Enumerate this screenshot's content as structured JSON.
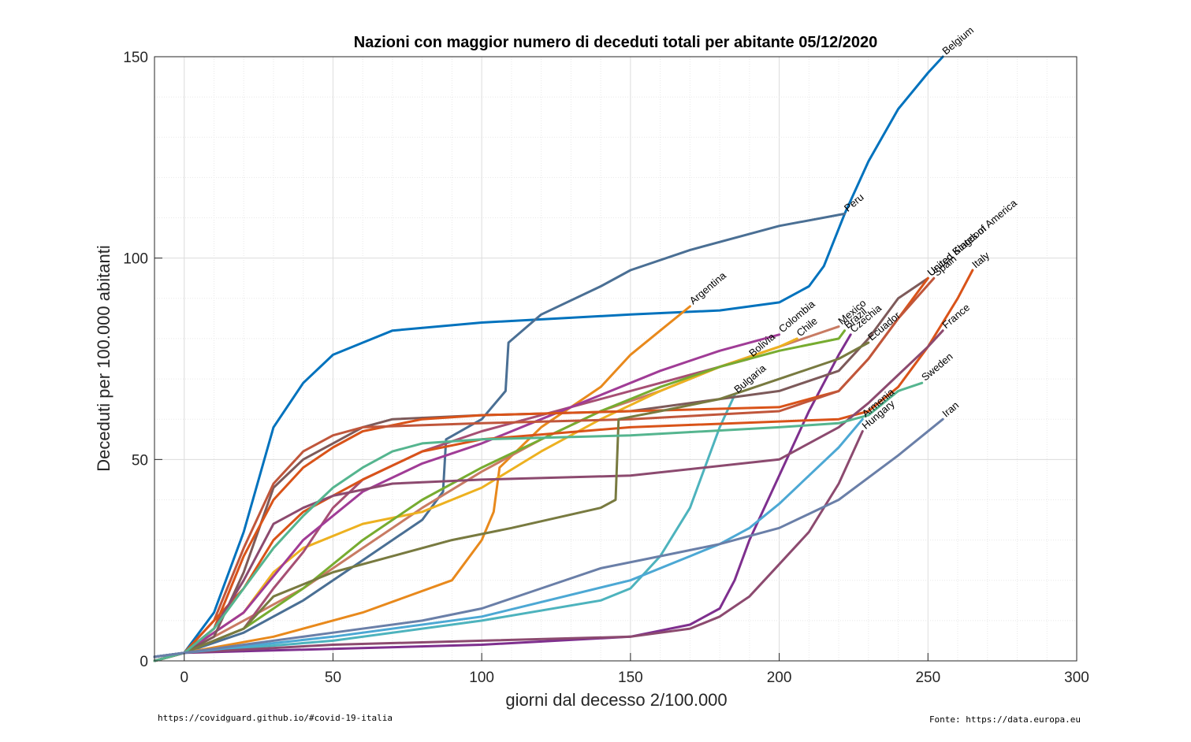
{
  "chart_data": {
    "type": "line",
    "title": "Nazioni con maggior numero di deceduti totali per abitante 05/12/2020",
    "xlabel": "giorni dal decesso 2/100.000",
    "ylabel": "Deceduti per 100.000 abitanti",
    "xlim": [
      -10,
      300
    ],
    "ylim": [
      0,
      150
    ],
    "xticks": [
      0,
      50,
      100,
      150,
      200,
      250,
      300
    ],
    "yticks": [
      0,
      50,
      100,
      150
    ],
    "grid": true,
    "series": [
      {
        "name": "Belgium",
        "color": "#0072bd",
        "points": [
          [
            -10,
            1
          ],
          [
            0,
            2
          ],
          [
            10,
            12
          ],
          [
            20,
            32
          ],
          [
            30,
            58
          ],
          [
            40,
            69
          ],
          [
            50,
            76
          ],
          [
            60,
            79
          ],
          [
            70,
            82
          ],
          [
            100,
            84
          ],
          [
            150,
            86
          ],
          [
            180,
            87
          ],
          [
            200,
            89
          ],
          [
            210,
            93
          ],
          [
            215,
            98
          ],
          [
            222,
            111
          ],
          [
            230,
            124
          ],
          [
            240,
            137
          ],
          [
            250,
            146
          ],
          [
            255,
            150
          ]
        ]
      },
      {
        "name": "Peru",
        "color": "#4a6f94",
        "points": [
          [
            -10,
            1
          ],
          [
            0,
            2
          ],
          [
            20,
            7
          ],
          [
            40,
            15
          ],
          [
            60,
            25
          ],
          [
            80,
            35
          ],
          [
            87,
            42
          ],
          [
            88,
            55
          ],
          [
            100,
            60
          ],
          [
            108,
            67
          ],
          [
            109,
            79
          ],
          [
            120,
            86
          ],
          [
            140,
            93
          ],
          [
            150,
            97
          ],
          [
            170,
            102
          ],
          [
            200,
            108
          ],
          [
            222,
            111
          ]
        ]
      },
      {
        "name": "Argentina",
        "color": "#e8891c",
        "points": [
          [
            -10,
            0
          ],
          [
            0,
            2
          ],
          [
            30,
            6
          ],
          [
            60,
            12
          ],
          [
            90,
            20
          ],
          [
            100,
            30
          ],
          [
            104,
            37
          ],
          [
            106,
            48
          ],
          [
            120,
            58
          ],
          [
            140,
            68
          ],
          [
            150,
            76
          ],
          [
            160,
            82
          ],
          [
            170,
            88
          ]
        ]
      },
      {
        "name": "Mexico",
        "color": "#c87b63",
        "points": [
          [
            -10,
            0
          ],
          [
            0,
            2
          ],
          [
            20,
            10
          ],
          [
            40,
            18
          ],
          [
            60,
            28
          ],
          [
            80,
            38
          ],
          [
            100,
            47
          ],
          [
            120,
            55
          ],
          [
            140,
            62
          ],
          [
            160,
            67
          ],
          [
            180,
            73
          ],
          [
            200,
            78
          ],
          [
            220,
            83
          ]
        ]
      },
      {
        "name": "Chile",
        "color": "#edb120",
        "points": [
          [
            -10,
            0
          ],
          [
            0,
            2
          ],
          [
            20,
            12
          ],
          [
            30,
            22
          ],
          [
            40,
            28
          ],
          [
            60,
            34
          ],
          [
            80,
            37
          ],
          [
            100,
            43
          ],
          [
            120,
            52
          ],
          [
            140,
            60
          ],
          [
            160,
            67
          ],
          [
            180,
            73
          ],
          [
            200,
            78
          ],
          [
            206,
            80
          ]
        ]
      },
      {
        "name": "Bolivia",
        "color": "#a64f73",
        "points": [
          [
            -10,
            0
          ],
          [
            0,
            2
          ],
          [
            20,
            8
          ],
          [
            30,
            18
          ],
          [
            40,
            27
          ],
          [
            50,
            38
          ],
          [
            60,
            45
          ],
          [
            80,
            52
          ],
          [
            100,
            57
          ],
          [
            120,
            61
          ],
          [
            140,
            65
          ],
          [
            160,
            69
          ],
          [
            180,
            73
          ],
          [
            190,
            75
          ]
        ]
      },
      {
        "name": "Colombia",
        "color": "#a03c96",
        "points": [
          [
            -10,
            0
          ],
          [
            0,
            2
          ],
          [
            20,
            12
          ],
          [
            40,
            30
          ],
          [
            60,
            42
          ],
          [
            80,
            49
          ],
          [
            100,
            54
          ],
          [
            120,
            60
          ],
          [
            140,
            66
          ],
          [
            160,
            72
          ],
          [
            180,
            77
          ],
          [
            200,
            81
          ]
        ]
      },
      {
        "name": "Bulgaria",
        "color": "#4db3bd",
        "points": [
          [
            -10,
            1
          ],
          [
            0,
            2
          ],
          [
            50,
            5
          ],
          [
            100,
            10
          ],
          [
            140,
            15
          ],
          [
            150,
            18
          ],
          [
            160,
            26
          ],
          [
            170,
            38
          ],
          [
            175,
            48
          ],
          [
            180,
            58
          ],
          [
            185,
            66
          ]
        ]
      },
      {
        "name": "Brazil",
        "color": "#77ac30",
        "points": [
          [
            -10,
            0
          ],
          [
            0,
            2
          ],
          [
            20,
            8
          ],
          [
            40,
            18
          ],
          [
            60,
            30
          ],
          [
            80,
            40
          ],
          [
            100,
            48
          ],
          [
            120,
            55
          ],
          [
            140,
            62
          ],
          [
            160,
            68
          ],
          [
            180,
            73
          ],
          [
            200,
            77
          ],
          [
            220,
            80
          ],
          [
            222,
            82
          ]
        ]
      },
      {
        "name": "Czechia",
        "color": "#7e2f8e",
        "points": [
          [
            -10,
            1
          ],
          [
            0,
            2
          ],
          [
            50,
            3
          ],
          [
            100,
            4
          ],
          [
            150,
            6
          ],
          [
            170,
            9
          ],
          [
            180,
            13
          ],
          [
            185,
            20
          ],
          [
            190,
            30
          ],
          [
            200,
            46
          ],
          [
            210,
            62
          ],
          [
            220,
            76
          ],
          [
            224,
            81
          ]
        ]
      },
      {
        "name": "United States of America",
        "color": "#7d5a5a",
        "points": [
          [
            -10,
            0
          ],
          [
            0,
            2
          ],
          [
            10,
            6
          ],
          [
            20,
            22
          ],
          [
            30,
            43
          ],
          [
            40,
            50
          ],
          [
            50,
            54
          ],
          [
            60,
            58
          ],
          [
            70,
            60
          ],
          [
            100,
            61
          ],
          [
            150,
            62
          ],
          [
            200,
            67
          ],
          [
            220,
            72
          ],
          [
            230,
            80
          ],
          [
            240,
            90
          ],
          [
            250,
            95
          ]
        ]
      },
      {
        "name": "United Kingdom",
        "color": "#d95319",
        "points": [
          [
            -10,
            0
          ],
          [
            0,
            2
          ],
          [
            10,
            8
          ],
          [
            20,
            26
          ],
          [
            30,
            40
          ],
          [
            40,
            48
          ],
          [
            50,
            53
          ],
          [
            60,
            57
          ],
          [
            80,
            60
          ],
          [
            100,
            61
          ],
          [
            150,
            62
          ],
          [
            200,
            63
          ],
          [
            220,
            67
          ],
          [
            230,
            75
          ],
          [
            240,
            85
          ],
          [
            250,
            95
          ]
        ]
      },
      {
        "name": "Spain",
        "color": "#c0563b",
        "points": [
          [
            -10,
            0
          ],
          [
            0,
            2
          ],
          [
            10,
            10
          ],
          [
            20,
            28
          ],
          [
            30,
            44
          ],
          [
            40,
            52
          ],
          [
            50,
            56
          ],
          [
            60,
            58
          ],
          [
            100,
            59
          ],
          [
            150,
            60
          ],
          [
            200,
            62
          ],
          [
            220,
            67
          ],
          [
            230,
            75
          ],
          [
            240,
            85
          ],
          [
            252,
            95
          ]
        ]
      },
      {
        "name": "Italy",
        "color": "#d95319",
        "points": [
          [
            -10,
            0
          ],
          [
            0,
            2
          ],
          [
            20,
            18
          ],
          [
            30,
            30
          ],
          [
            40,
            37
          ],
          [
            60,
            45
          ],
          [
            80,
            52
          ],
          [
            100,
            55
          ],
          [
            150,
            58
          ],
          [
            220,
            60
          ],
          [
            230,
            62
          ],
          [
            240,
            68
          ],
          [
            250,
            78
          ],
          [
            260,
            90
          ],
          [
            265,
            97
          ]
        ]
      },
      {
        "name": "France",
        "color": "#8c4a6f",
        "points": [
          [
            -10,
            0
          ],
          [
            0,
            2
          ],
          [
            10,
            8
          ],
          [
            20,
            20
          ],
          [
            30,
            34
          ],
          [
            40,
            38
          ],
          [
            50,
            41
          ],
          [
            70,
            44
          ],
          [
            100,
            45
          ],
          [
            150,
            46
          ],
          [
            200,
            50
          ],
          [
            220,
            58
          ],
          [
            230,
            64
          ],
          [
            240,
            71
          ],
          [
            250,
            78
          ],
          [
            255,
            82
          ]
        ]
      },
      {
        "name": "Ecuador",
        "color": "#787a40",
        "points": [
          [
            -10,
            0
          ],
          [
            0,
            2
          ],
          [
            20,
            8
          ],
          [
            30,
            16
          ],
          [
            50,
            22
          ],
          [
            70,
            26
          ],
          [
            90,
            30
          ],
          [
            110,
            33
          ],
          [
            140,
            38
          ],
          [
            145,
            40
          ],
          [
            146,
            60
          ],
          [
            160,
            62
          ],
          [
            180,
            65
          ],
          [
            200,
            70
          ],
          [
            220,
            75
          ],
          [
            230,
            79
          ]
        ]
      },
      {
        "name": "Sweden",
        "color": "#55b58f",
        "points": [
          [
            -10,
            0
          ],
          [
            0,
            2
          ],
          [
            10,
            8
          ],
          [
            20,
            18
          ],
          [
            30,
            28
          ],
          [
            40,
            36
          ],
          [
            50,
            43
          ],
          [
            60,
            48
          ],
          [
            70,
            52
          ],
          [
            80,
            54
          ],
          [
            100,
            55
          ],
          [
            150,
            56
          ],
          [
            200,
            58
          ],
          [
            220,
            59
          ],
          [
            230,
            61
          ],
          [
            240,
            67
          ],
          [
            248,
            69
          ]
        ]
      },
      {
        "name": "Hungary",
        "color": "#8c4a6f",
        "points": [
          [
            -10,
            1
          ],
          [
            0,
            2
          ],
          [
            50,
            4
          ],
          [
            100,
            5
          ],
          [
            150,
            6
          ],
          [
            170,
            8
          ],
          [
            180,
            11
          ],
          [
            190,
            16
          ],
          [
            200,
            24
          ],
          [
            210,
            32
          ],
          [
            220,
            44
          ],
          [
            228,
            57
          ]
        ]
      },
      {
        "name": "Armenia",
        "color": "#4ca8d4",
        "points": [
          [
            -10,
            1
          ],
          [
            0,
            2
          ],
          [
            50,
            6
          ],
          [
            100,
            11
          ],
          [
            150,
            20
          ],
          [
            170,
            26
          ],
          [
            180,
            29
          ],
          [
            190,
            33
          ],
          [
            200,
            39
          ],
          [
            210,
            46
          ],
          [
            220,
            53
          ],
          [
            228,
            60
          ]
        ]
      },
      {
        "name": "Iran",
        "color": "#6a7fa8",
        "points": [
          [
            -10,
            1
          ],
          [
            0,
            2
          ],
          [
            20,
            4
          ],
          [
            50,
            7
          ],
          [
            80,
            10
          ],
          [
            100,
            13
          ],
          [
            120,
            18
          ],
          [
            140,
            23
          ],
          [
            160,
            26
          ],
          [
            180,
            29
          ],
          [
            200,
            33
          ],
          [
            220,
            40
          ],
          [
            240,
            51
          ],
          [
            255,
            60
          ]
        ]
      }
    ]
  },
  "footer": {
    "left": "https://covidguard.github.io/#covid-19-italia",
    "right": "Fonte: https://data.europa.eu"
  }
}
